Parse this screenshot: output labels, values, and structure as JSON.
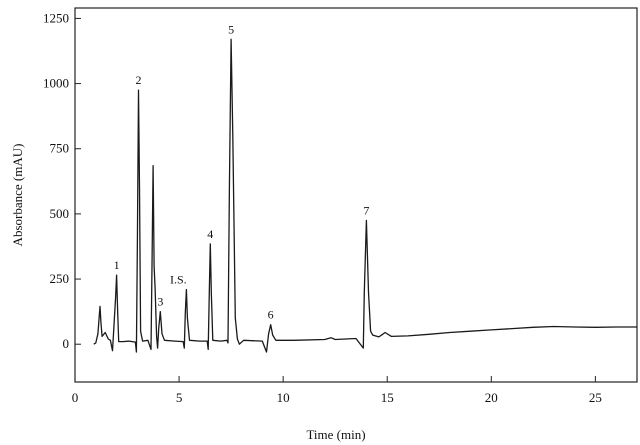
{
  "chart_data": {
    "type": "line",
    "xlabel": "Time (min)",
    "ylabel": "Absorbance (mAU)",
    "xlim": [
      0,
      27
    ],
    "ylim": [
      -145,
      1290
    ],
    "x_ticks": [
      0,
      5,
      10,
      15,
      20,
      25
    ],
    "y_ticks": [
      0,
      250,
      500,
      750,
      1000,
      1250
    ],
    "grid": false,
    "legend": "none",
    "baseline": [
      [
        0.9,
        0
      ],
      [
        3,
        5
      ],
      [
        5,
        10
      ],
      [
        8,
        12
      ],
      [
        10,
        15
      ],
      [
        12,
        20
      ],
      [
        15,
        30
      ],
      [
        18,
        45
      ],
      [
        20,
        55
      ],
      [
        22,
        65
      ],
      [
        23,
        68
      ],
      [
        25,
        65
      ],
      [
        27,
        66
      ]
    ],
    "peaks": [
      {
        "label": "",
        "t": 1.2,
        "height": 145
      },
      {
        "label": "1",
        "t": 2.0,
        "height": 265
      },
      {
        "label": "2",
        "t": 3.05,
        "height": 975
      },
      {
        "label": "",
        "t": 3.75,
        "height": 685
      },
      {
        "label": "",
        "t": 3.85,
        "height": 215
      },
      {
        "label": "3",
        "t": 4.1,
        "height": 125
      },
      {
        "label": "I.S.",
        "t": 5.35,
        "height": 210
      },
      {
        "label": "4",
        "t": 6.5,
        "height": 385
      },
      {
        "label": "5",
        "t": 7.5,
        "height": 1170
      },
      {
        "label": "6",
        "t": 9.4,
        "height": 75
      },
      {
        "label": "7",
        "t": 14.0,
        "height": 475
      }
    ],
    "series": [
      {
        "points": [
          [
            0.9,
            0
          ],
          [
            1.0,
            5
          ],
          [
            1.1,
            40
          ],
          [
            1.15,
            90
          ],
          [
            1.2,
            145
          ],
          [
            1.25,
            80
          ],
          [
            1.3,
            30
          ],
          [
            1.45,
            45
          ],
          [
            1.6,
            20
          ],
          [
            1.7,
            15
          ],
          [
            1.8,
            -25
          ],
          [
            1.85,
            40
          ],
          [
            1.95,
            180
          ],
          [
            2.0,
            265
          ],
          [
            2.05,
            120
          ],
          [
            2.1,
            10
          ],
          [
            2.3,
            10
          ],
          [
            2.6,
            12
          ],
          [
            2.9,
            8
          ],
          [
            2.95,
            -30
          ],
          [
            3.0,
            400
          ],
          [
            3.05,
            975
          ],
          [
            3.1,
            600
          ],
          [
            3.15,
            50
          ],
          [
            3.25,
            12
          ],
          [
            3.5,
            15
          ],
          [
            3.65,
            -20
          ],
          [
            3.7,
            300
          ],
          [
            3.75,
            685
          ],
          [
            3.8,
            300
          ],
          [
            3.85,
            215
          ],
          [
            3.92,
            30
          ],
          [
            3.97,
            -15
          ],
          [
            4.02,
            60
          ],
          [
            4.1,
            125
          ],
          [
            4.18,
            40
          ],
          [
            4.3,
            15
          ],
          [
            4.8,
            12
          ],
          [
            5.2,
            10
          ],
          [
            5.25,
            -15
          ],
          [
            5.3,
            120
          ],
          [
            5.35,
            210
          ],
          [
            5.4,
            100
          ],
          [
            5.5,
            15
          ],
          [
            6.0,
            12
          ],
          [
            6.35,
            12
          ],
          [
            6.4,
            -20
          ],
          [
            6.45,
            200
          ],
          [
            6.5,
            385
          ],
          [
            6.55,
            200
          ],
          [
            6.62,
            15
          ],
          [
            7.0,
            12
          ],
          [
            7.3,
            15
          ],
          [
            7.35,
            5
          ],
          [
            7.42,
            600
          ],
          [
            7.5,
            1170
          ],
          [
            7.58,
            800
          ],
          [
            7.7,
            100
          ],
          [
            7.8,
            20
          ],
          [
            7.9,
            0
          ],
          [
            8.1,
            15
          ],
          [
            9.0,
            12
          ],
          [
            9.2,
            -30
          ],
          [
            9.3,
            40
          ],
          [
            9.4,
            75
          ],
          [
            9.5,
            35
          ],
          [
            9.65,
            15
          ],
          [
            10.5,
            15
          ],
          [
            12.0,
            18
          ],
          [
            12.3,
            25
          ],
          [
            12.5,
            18
          ],
          [
            13.5,
            22
          ],
          [
            13.85,
            -15
          ],
          [
            13.9,
            200
          ],
          [
            14.0,
            475
          ],
          [
            14.1,
            200
          ],
          [
            14.2,
            50
          ],
          [
            14.3,
            35
          ],
          [
            14.6,
            28
          ],
          [
            14.9,
            45
          ],
          [
            15.2,
            30
          ],
          [
            16,
            32
          ],
          [
            17,
            38
          ],
          [
            18,
            45
          ],
          [
            19,
            50
          ],
          [
            20,
            55
          ],
          [
            21,
            60
          ],
          [
            22,
            65
          ],
          [
            23,
            68
          ],
          [
            24,
            66
          ],
          [
            25,
            65
          ],
          [
            26,
            66
          ],
          [
            27,
            66
          ]
        ]
      }
    ]
  }
}
